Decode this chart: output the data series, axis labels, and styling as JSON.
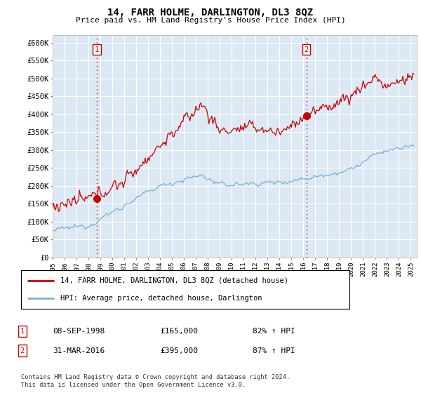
{
  "title": "14, FARR HOLME, DARLINGTON, DL3 8QZ",
  "subtitle": "Price paid vs. HM Land Registry's House Price Index (HPI)",
  "ylabel_ticks": [
    "£0",
    "£50K",
    "£100K",
    "£150K",
    "£200K",
    "£250K",
    "£300K",
    "£350K",
    "£400K",
    "£450K",
    "£500K",
    "£550K",
    "£600K"
  ],
  "ytick_values": [
    0,
    50000,
    100000,
    150000,
    200000,
    250000,
    300000,
    350000,
    400000,
    450000,
    500000,
    550000,
    600000
  ],
  "ylim": [
    0,
    620000
  ],
  "xlim_start": 1995.0,
  "xlim_end": 2025.5,
  "sale1_x": 1998.69,
  "sale1_y": 165000,
  "sale2_x": 2016.25,
  "sale2_y": 395000,
  "legend_line1": "14, FARR HOLME, DARLINGTON, DL3 8QZ (detached house)",
  "legend_line2": "HPI: Average price, detached house, Darlington",
  "table_row1_num": "1",
  "table_row1_date": "08-SEP-1998",
  "table_row1_price": "£165,000",
  "table_row1_hpi": "82% ↑ HPI",
  "table_row2_num": "2",
  "table_row2_date": "31-MAR-2016",
  "table_row2_price": "£395,000",
  "table_row2_hpi": "87% ↑ HPI",
  "footer": "Contains HM Land Registry data © Crown copyright and database right 2024.\nThis data is licensed under the Open Government Licence v3.0.",
  "line_color_red": "#cc0000",
  "line_color_blue": "#7ab0d4",
  "vline_color": "#cc0000",
  "background_color": "#ffffff",
  "chart_bg_color": "#dce9f5",
  "grid_color": "#ffffff"
}
